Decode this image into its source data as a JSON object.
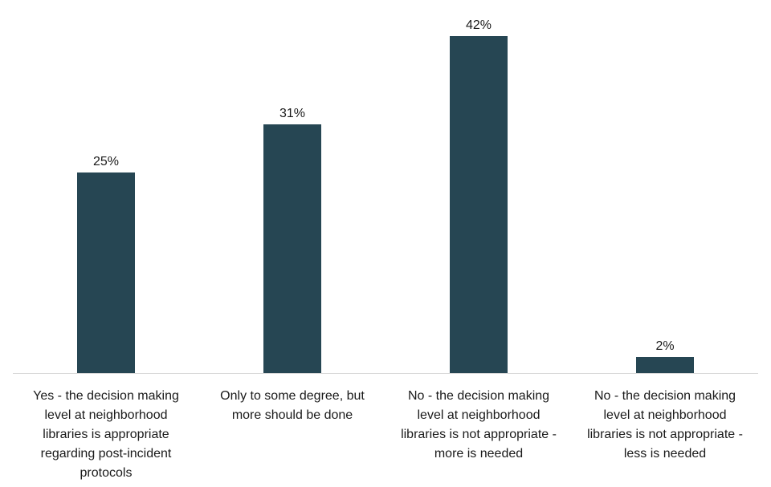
{
  "chart_data": {
    "type": "bar",
    "title": "",
    "xlabel": "",
    "ylabel": "",
    "ylim": [
      0,
      42
    ],
    "grid": false,
    "legend": "none",
    "bar_color": "#264653",
    "categories": [
      [
        "Yes - the decision making",
        "level at neighborhood",
        "libraries is appropriate",
        "regarding post-incident",
        "protocols"
      ],
      [
        "Only to some degree, but",
        "more should be done"
      ],
      [
        "No - the decision making",
        "level at neighborhood",
        "libraries is not appropriate -",
        "more is needed"
      ],
      [
        "No - the decision making",
        "level at neighborhood",
        "libraries is not appropriate -",
        "less is needed"
      ]
    ],
    "values": [
      25,
      31,
      42,
      2
    ],
    "value_labels": [
      "25%",
      "31%",
      "42%",
      "2%"
    ]
  }
}
